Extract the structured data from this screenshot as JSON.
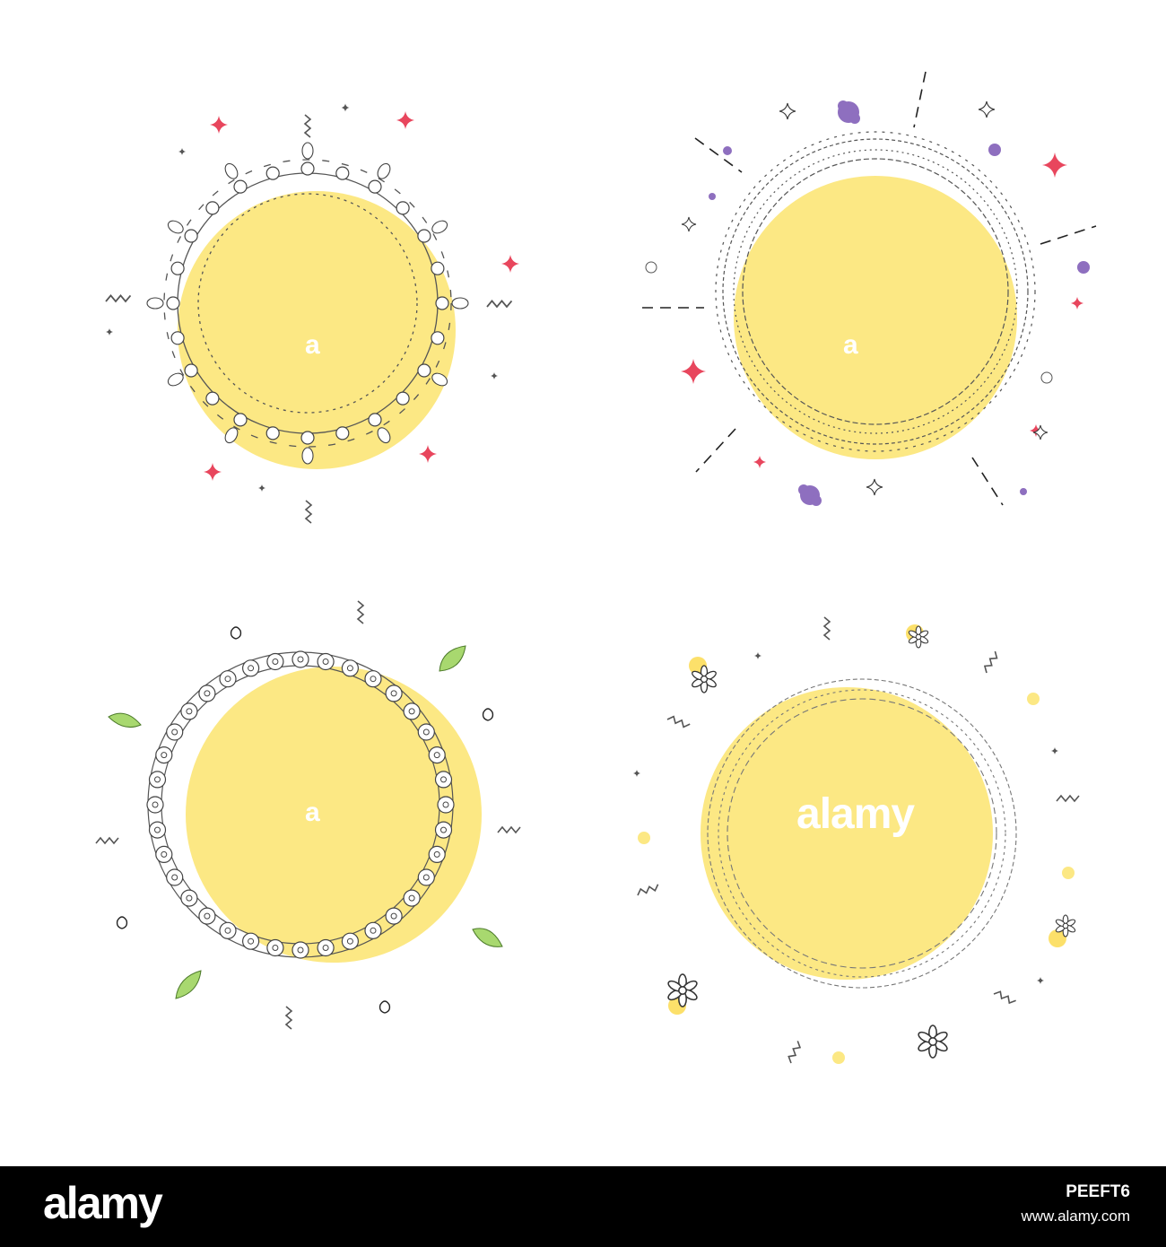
{
  "colors": {
    "background": "#ffffff",
    "circle_fill": "#fce884",
    "ornament_stroke": "#555555",
    "sparkle_red": "#e8465d",
    "flower_purple": "#7a55a6",
    "leaf_green": "#8cc63f",
    "footer_bg": "#000000"
  },
  "watermark": {
    "small_mark": "a",
    "large_mark": "alamy"
  },
  "frames": [
    {
      "name": "frame-top-left-flower-wreath",
      "ornament": "tulip-bead-wreath"
    },
    {
      "name": "frame-top-right-swirl-lace",
      "ornament": "swirl-lace-ring"
    },
    {
      "name": "frame-bottom-left-bead-chain",
      "ornament": "bead-chain-ring"
    },
    {
      "name": "frame-bottom-right-loop-lace",
      "ornament": "loop-lace-ring"
    }
  ],
  "footer": {
    "logo": "alamy",
    "image_id": "PEEFT6",
    "url": "www.alamy.com"
  }
}
